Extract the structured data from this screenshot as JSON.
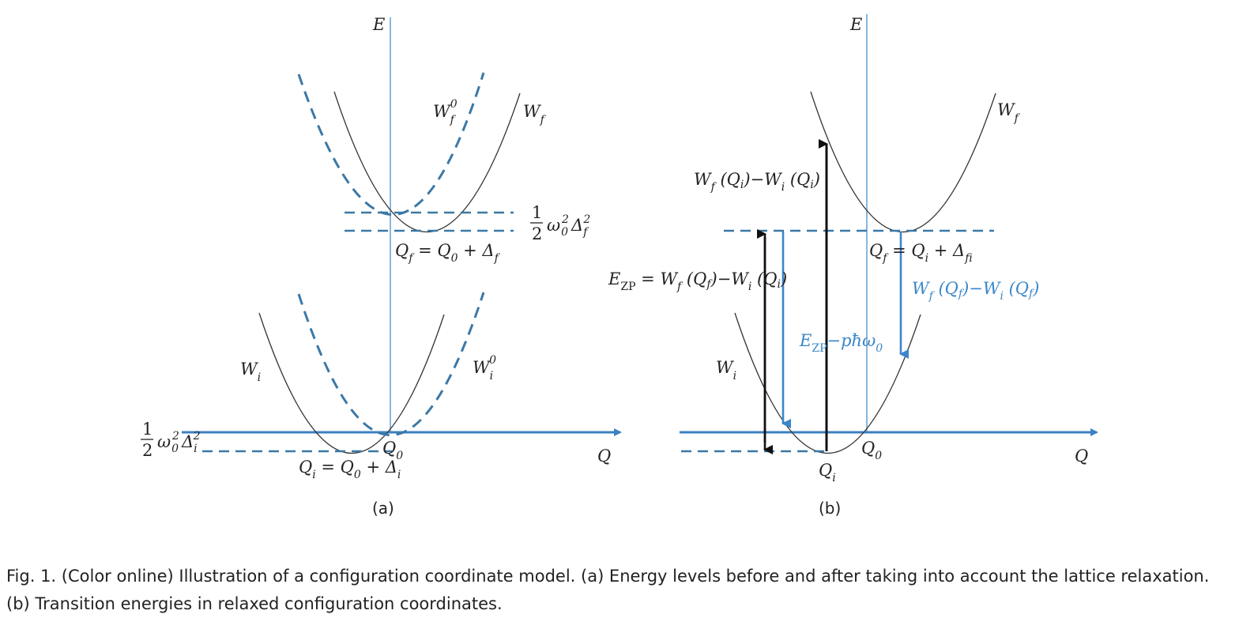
{
  "panel_a": {
    "axis_e": "E",
    "axis_q": "Q",
    "curve_wf0": {
      "main": "W",
      "sub": "f",
      "sup": "0"
    },
    "curve_wf": {
      "main": "W",
      "sub": "f"
    },
    "curve_wi": {
      "main": "W",
      "sub": "i"
    },
    "curve_wi0": {
      "main": "W",
      "sub": "i",
      "sup": "0"
    },
    "gap_f": {
      "frac": "1",
      "den": "2",
      "expr": "ω",
      "expr_sub": "0",
      "expr_sup": "2",
      "delta": "Δ",
      "delta_sub": "f",
      "delta_sup": "2"
    },
    "gap_i": {
      "frac": "1",
      "den": "2",
      "expr": "ω",
      "expr_sub": "0",
      "expr_sup": "2",
      "delta": "Δ",
      "delta_sub": "i",
      "delta_sup": "2"
    },
    "qf_eq": {
      "a": "Q",
      "a_sub": "f",
      "eq": " = Q",
      "b_sub": "0",
      "plus": " + Δ",
      "c_sub": "f"
    },
    "q0": {
      "main": "Q",
      "sub": "0"
    },
    "qi_eq": {
      "a": "Q",
      "a_sub": "i",
      "eq": " = Q",
      "b_sub": "0",
      "plus": " + Δ",
      "c_sub": "i"
    },
    "label": "(a)"
  },
  "panel_b": {
    "axis_e": "E",
    "axis_q": "Q",
    "curve_wf": {
      "main": "W",
      "sub": "f"
    },
    "curve_wi": {
      "main": "W",
      "sub": "i"
    },
    "vertical_abs": {
      "a": "W",
      "a_sub": "f",
      "mid": " (Q",
      "m_sub": "i",
      "mid2": ")−W",
      "b_sub": "i",
      "end": " (Q",
      "e_sub": "i",
      "close": ")"
    },
    "ezp_eq": {
      "a": "E",
      "a_sub": "ZP",
      "eq": " = W",
      "b_sub": "f",
      "mid": " (Q",
      "m_sub": "f",
      "mid2": ")−W",
      "c_sub": "i",
      "end": " (Q",
      "e_sub": "i",
      "close": ")"
    },
    "emission": {
      "a": "E",
      "a_sub": "ZP",
      "rest": "−pħω",
      "r_sub": "0"
    },
    "qf_eq": {
      "a": "Q",
      "a_sub": "f",
      "eq": " = Q",
      "b_sub": "i",
      "plus": " + Δ",
      "c_sub": "fi"
    },
    "relax": {
      "a": "W",
      "a_sub": "f",
      "mid": " (Q",
      "m_sub": "f",
      "mid2": ")−W",
      "b_sub": "i",
      "end": " (Q",
      "e_sub": "f",
      "close": ")"
    },
    "q0": {
      "main": "Q",
      "sub": "0"
    },
    "qi": {
      "main": "Q",
      "sub": "i"
    },
    "label": "(b)"
  },
  "caption": {
    "line1": "Fig. 1. (Color online) Illustration of a configuration coordinate model. (a) Energy levels before and after taking into account the lattice relaxation.",
    "line2": "(b) Transition energies in relaxed configuration coordinates."
  },
  "colors": {
    "axis": "#3b82c0",
    "dashed": "#3b78a6",
    "highlight": "#3a86c8",
    "curve": "#333333"
  }
}
